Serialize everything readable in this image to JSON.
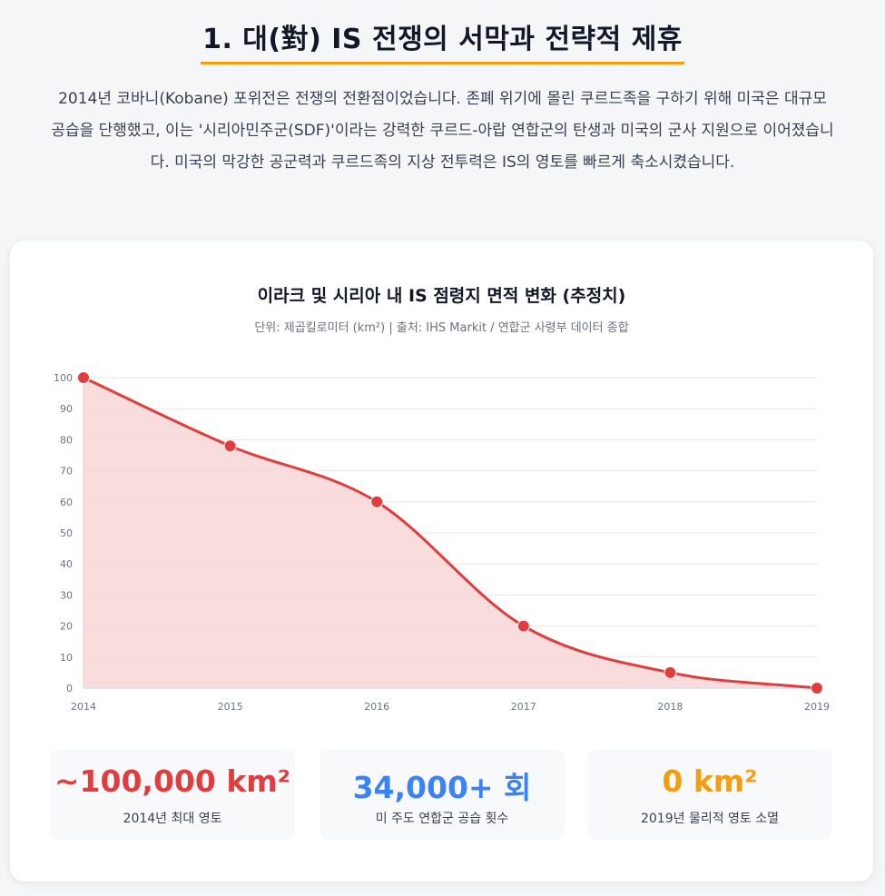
{
  "section": {
    "title": "1. 대(對) IS 전쟁의 서막과 전략적 제휴",
    "intro": "2014년 코바니(Kobane) 포위전은 전쟁의 전환점이었습니다. 존폐 위기에 몰린 쿠르드족을 구하기 위해 미국은 대규모 공습을 단행했고, 이는 '시리아민주군(SDF)'이라는 강력한 쿠르드-아랍 연합군의 탄생과 미국의 군사 지원으로 이어졌습니다. 미국의 막강한 공군력과 쿠르드족의 지상 전투력은 IS의 영토를 빠르게 축소시켰습니다."
  },
  "chart_data": {
    "type": "area",
    "title": "이라크 및 시리아 내 IS 점령지 면적 변화 (추정치)",
    "subtitle": "단위: 제곱킬로미터 (km²) | 출처: IHS Markit / 연합군 사령부 데이터 종합",
    "x": [
      "2014",
      "2015",
      "2016",
      "2017",
      "2018",
      "2019"
    ],
    "values": [
      100,
      78,
      60,
      20,
      5,
      0
    ],
    "ylim": [
      0,
      100
    ],
    "yticks": [
      "0",
      "10",
      "20",
      "30",
      "40",
      "50",
      "60",
      "70",
      "80",
      "90",
      "100"
    ],
    "grid": true,
    "line_color": "#e03e3e",
    "fill_color": "#f8d7d7"
  },
  "stats": [
    {
      "value": "~100,000 km²",
      "label": "2014년 최대 영토",
      "color": "#e03e3e"
    },
    {
      "value": "34,000+ 회",
      "label": "미 주도 연합군 공습 횟수",
      "color": "#3b82f6"
    },
    {
      "value": "0 km²",
      "label": "2019년 물리적 영토 소멸",
      "color": "#f59e0b"
    }
  ]
}
